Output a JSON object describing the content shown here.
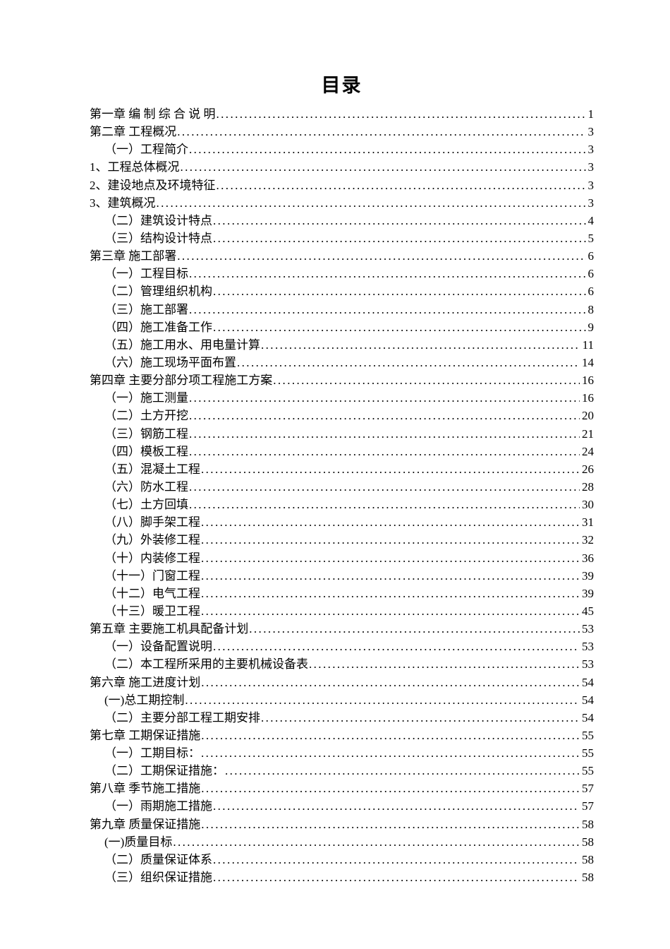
{
  "page": {
    "title": "目录"
  },
  "toc": {
    "entries": [
      {
        "text": "第一章 编 制 综 合 说 明",
        "page": "1",
        "level": 0
      },
      {
        "text": "第二章 工程概况",
        "page": "3",
        "level": 0
      },
      {
        "text": "（一）工程简介",
        "page": "3",
        "level": 1
      },
      {
        "text": "1、工程总体概况",
        "page": "3",
        "level": 0
      },
      {
        "text": "2、建设地点及环境特征",
        "page": "3",
        "level": 0
      },
      {
        "text": "3、建筑概况",
        "page": "3",
        "level": 0
      },
      {
        "text": "（二）建筑设计特点",
        "page": "4",
        "level": 1
      },
      {
        "text": "（三）结构设计特点",
        "page": "5",
        "level": 1
      },
      {
        "text": "第三章 施工部署",
        "page": "6",
        "level": 0
      },
      {
        "text": "（一）工程目标",
        "page": "6",
        "level": 1
      },
      {
        "text": "（二）管理组织机构",
        "page": "6",
        "level": 1
      },
      {
        "text": "（三）施工部署",
        "page": "8",
        "level": 1
      },
      {
        "text": "（四）施工准备工作",
        "page": "9",
        "level": 1
      },
      {
        "text": "（五）施工用水、用电量计算",
        "page": "11",
        "level": 1
      },
      {
        "text": "（六）施工现场平面布置",
        "page": "14",
        "level": 1
      },
      {
        "text": "第四章 主要分部分项工程施工方案",
        "page": "16",
        "level": 0
      },
      {
        "text": "（一）施工测量",
        "page": "16",
        "level": 1
      },
      {
        "text": "（二）土方开挖",
        "page": "20",
        "level": 1
      },
      {
        "text": "（三）钢筋工程",
        "page": "21",
        "level": 1
      },
      {
        "text": "（四）模板工程",
        "page": "24",
        "level": 1
      },
      {
        "text": "（五）混凝土工程",
        "page": "26",
        "level": 1
      },
      {
        "text": "（六）防水工程",
        "page": "28",
        "level": 1
      },
      {
        "text": "（七）土方回填",
        "page": "30",
        "level": 1
      },
      {
        "text": "（八）脚手架工程",
        "page": "31",
        "level": 1
      },
      {
        "text": "（九）外装修工程",
        "page": "32",
        "level": 1
      },
      {
        "text": "（十）内装修工程",
        "page": "36",
        "level": 1
      },
      {
        "text": "（十一）门窗工程",
        "page": "39",
        "level": 1
      },
      {
        "text": "（十二）电气工程",
        "page": "39",
        "level": 1
      },
      {
        "text": "（十三）暖卫工程",
        "page": "45",
        "level": 1
      },
      {
        "text": "第五章 主要施工机具配备计划",
        "page": "53",
        "level": 0
      },
      {
        "text": "（一）设备配置说明",
        "page": "53",
        "level": 1
      },
      {
        "text": "（二）本工程所采用的主要机械设备表",
        "page": "53",
        "level": 1
      },
      {
        "text": "第六章 施工进度计划",
        "page": "54",
        "level": 0
      },
      {
        "text": "(一)总工期控制",
        "page": "54",
        "level": 1
      },
      {
        "text": "（二）主要分部工程工期安排",
        "page": "54",
        "level": 1
      },
      {
        "text": "第七章 工期保证措施",
        "page": "55",
        "level": 0
      },
      {
        "text": "（一）工期目标：",
        "page": "55",
        "level": 1
      },
      {
        "text": "（二）工期保证措施：",
        "page": "55",
        "level": 1
      },
      {
        "text": "第八章 季节施工措施",
        "page": "57",
        "level": 0
      },
      {
        "text": "（一）雨期施工措施",
        "page": "57",
        "level": 1
      },
      {
        "text": "第九章 质量保证措施",
        "page": "58",
        "level": 0
      },
      {
        "text": "(一)质量目标",
        "page": "58",
        "level": 1
      },
      {
        "text": "（二）质量保证体系",
        "page": "58",
        "level": 1
      },
      {
        "text": "（三）组织保证措施",
        "page": "58",
        "level": 1
      }
    ]
  }
}
